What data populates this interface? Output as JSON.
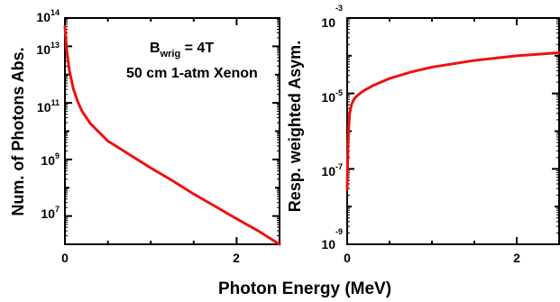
{
  "figure": {
    "xlabel": "Photon Energy (MeV)"
  },
  "colors": {
    "curve": "#ee1111",
    "axis": "#000000"
  },
  "chart_data": [
    {
      "type": "line",
      "panel": "left",
      "ylabel": "Num. of Photons Abs.",
      "yscale": "log",
      "xlim": [
        0,
        2.5
      ],
      "ylim": [
        1000000.0,
        100000000000000.0
      ],
      "x_ticks": [
        0,
        2
      ],
      "y_ticks": [
        7,
        9,
        11,
        13,
        14
      ],
      "annotations": {
        "line1_main": "B",
        "line1_sub": "wrig",
        "line1_rest": " = 4T",
        "line2": "50 cm 1-atm Xenon"
      },
      "series": [
        {
          "x": [
            0.0,
            0.02,
            0.05,
            0.1,
            0.15,
            0.2,
            0.3,
            0.5,
            0.75,
            1.0,
            1.25,
            1.5,
            1.75,
            2.0,
            2.25,
            2.5
          ],
          "y": [
            50000000000000.0,
            8000000000000.0,
            1500000000000.0,
            300000000000.0,
            110000000000.0,
            50000000000.0,
            18000000000.0,
            4500000000.0,
            1500000000.0,
            500000000.0,
            180000000.0,
            60000000.0,
            22000000.0,
            8000000.0,
            3000000.0,
            1000000.0
          ]
        }
      ]
    },
    {
      "type": "line",
      "panel": "right",
      "ylabel": "Resp. weighted Asym.",
      "yscale": "log",
      "xlim": [
        0,
        2.5
      ],
      "ylim": [
        1e-09,
        0.001
      ],
      "x_ticks": [
        0,
        2
      ],
      "y_ticks": [
        -9,
        -7,
        -5,
        -3
      ],
      "series": [
        {
          "x": [
            0.0,
            0.01,
            0.02,
            0.03,
            0.05,
            0.08,
            0.1,
            0.15,
            0.2,
            0.3,
            0.5,
            0.75,
            1.0,
            1.5,
            2.0,
            2.5
          ],
          "y": [
            3e-08,
            5e-07,
            1.5e-06,
            3e-06,
            5e-06,
            7e-06,
            8e-06,
            1e-05,
            1.2e-05,
            1.6e-05,
            2.5e-05,
            3.7e-05,
            5e-05,
            7.5e-05,
            0.0001,
            0.00012
          ]
        }
      ]
    }
  ]
}
